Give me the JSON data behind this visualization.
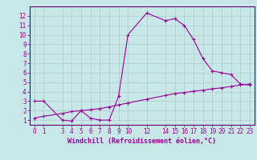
{
  "xlabel": "Windchill (Refroidissement éolien,°C)",
  "bg_color": "#c8e8e8",
  "grid_color": "#b0c8d0",
  "line_color": "#990099",
  "spine_color": "#660066",
  "line1_x": [
    0,
    1,
    3,
    4,
    5,
    6,
    7,
    8,
    9,
    10,
    12,
    14,
    15,
    16,
    17,
    18,
    19,
    20,
    21,
    22,
    23
  ],
  "line1_y": [
    3,
    3,
    1,
    0.9,
    2,
    1.2,
    1,
    1,
    3.5,
    10,
    12.3,
    11.5,
    11.7,
    11,
    9.5,
    7.5,
    6.2,
    6,
    5.8,
    4.8,
    4.7
  ],
  "line2_x": [
    0,
    1,
    3,
    4,
    5,
    6,
    7,
    8,
    9,
    10,
    12,
    14,
    15,
    16,
    17,
    18,
    19,
    20,
    21,
    22,
    23
  ],
  "line2_y": [
    1.2,
    1.4,
    1.7,
    1.9,
    2.0,
    2.1,
    2.2,
    2.4,
    2.6,
    2.8,
    3.2,
    3.6,
    3.8,
    3.9,
    4.05,
    4.15,
    4.3,
    4.4,
    4.55,
    4.7,
    4.8
  ],
  "xlim": [
    -0.5,
    23.5
  ],
  "ylim": [
    0.5,
    13
  ],
  "yticks": [
    1,
    2,
    3,
    4,
    5,
    6,
    7,
    8,
    9,
    10,
    11,
    12
  ],
  "xticks": [
    0,
    1,
    3,
    4,
    5,
    6,
    7,
    8,
    9,
    10,
    12,
    14,
    15,
    16,
    17,
    18,
    19,
    20,
    21,
    22,
    23
  ],
  "tick_fontsize": 5.5,
  "xlabel_fontsize": 6.0,
  "marker_size": 3,
  "linewidth": 0.8
}
